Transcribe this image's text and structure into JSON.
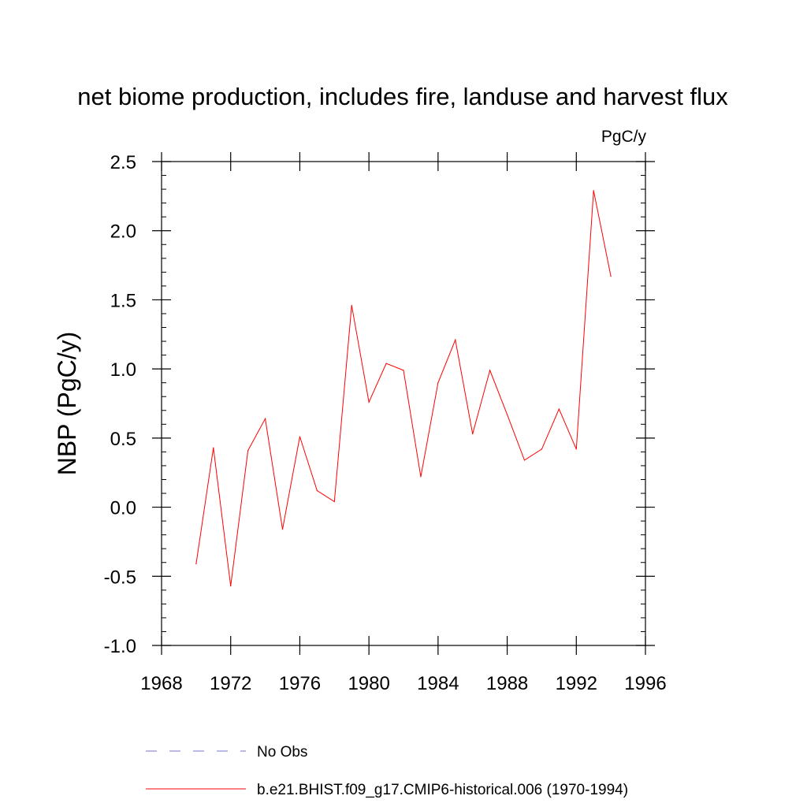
{
  "chart_data": {
    "type": "line",
    "title": "net biome production, includes fire, landuse and harvest flux",
    "units_label": "PgC/y",
    "ylabel": "NBP  (PgC/y)",
    "xlabel": "",
    "xlim": [
      1968,
      1996
    ],
    "ylim": [
      -1.0,
      2.5
    ],
    "x_ticks": [
      1968,
      1972,
      1976,
      1980,
      1984,
      1988,
      1992,
      1996
    ],
    "x_tick_labels": [
      "1968",
      "1972",
      "1976",
      "1980",
      "1984",
      "1988",
      "1992",
      "1996"
    ],
    "y_ticks": [
      -1.0,
      -0.5,
      0.0,
      0.5,
      1.0,
      1.5,
      2.0,
      2.5
    ],
    "y_tick_labels": [
      "-1.0",
      "-0.5",
      "0.0",
      "0.5",
      "1.0",
      "1.5",
      "2.0",
      "2.5"
    ],
    "grid": false,
    "legend_position": "bottom",
    "series": [
      {
        "name": "b.e21.BHIST.f09_g17.CMIP6-historical.006 (1970-1994)",
        "color": "#ff0000",
        "style": "solid",
        "x": [
          1970,
          1971,
          1972,
          1973,
          1974,
          1975,
          1976,
          1977,
          1978,
          1979,
          1980,
          1981,
          1982,
          1983,
          1984,
          1985,
          1986,
          1987,
          1988,
          1989,
          1990,
          1991,
          1992,
          1993,
          1994
        ],
        "y": [
          -0.41,
          0.43,
          -0.57,
          0.41,
          0.64,
          -0.16,
          0.51,
          0.12,
          0.04,
          1.46,
          0.76,
          1.04,
          0.99,
          0.22,
          0.9,
          1.21,
          0.53,
          0.99,
          0.67,
          0.34,
          0.42,
          0.71,
          0.42,
          2.29,
          1.67
        ]
      }
    ],
    "legend": [
      {
        "label": "No Obs",
        "color": "#7777cc",
        "style": "dashed"
      },
      {
        "label": "b.e21.BHIST.f09_g17.CMIP6-historical.006 (1970-1994)",
        "color": "#ff0000",
        "style": "solid"
      }
    ]
  }
}
